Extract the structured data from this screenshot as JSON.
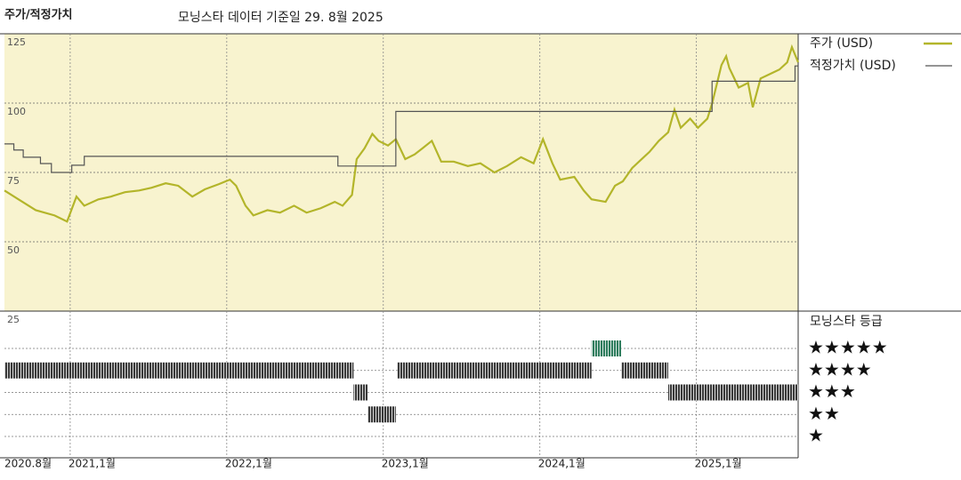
{
  "chart_data": [
    {
      "type": "line",
      "title": "주가/적정가치",
      "subtitle": "모닝스타 데이터 기준일 29. 8월 2025",
      "xlim": [
        2020.58,
        2025.65
      ],
      "ylim": [
        25,
        125
      ],
      "yticks": [
        25,
        50,
        75,
        100,
        125
      ],
      "xticks": [
        {
          "value": 2020.58,
          "label": "2020.8월"
        },
        {
          "value": 2021,
          "label": "2021,1월"
        },
        {
          "value": 2022,
          "label": "2022,1월"
        },
        {
          "value": 2023,
          "label": "2023,1월"
        },
        {
          "value": 2024,
          "label": "2024,1월"
        },
        {
          "value": 2025,
          "label": "2025,1월"
        }
      ],
      "grid": true,
      "background": "#f8f3cf",
      "series": [
        {
          "name": "주가 (USD)",
          "color": "#b3b52a",
          "x": [
            2020.58,
            2020.67,
            2020.78,
            2020.9,
            2020.98,
            2021.04,
            2021.09,
            2021.18,
            2021.26,
            2021.35,
            2021.44,
            2021.52,
            2021.61,
            2021.69,
            2021.78,
            2021.86,
            2021.95,
            2022.02,
            2022.06,
            2022.12,
            2022.17,
            2022.26,
            2022.34,
            2022.43,
            2022.51,
            2022.6,
            2022.69,
            2022.74,
            2022.8,
            2022.83,
            2022.88,
            2022.93,
            2022.97,
            2023.03,
            2023.08,
            2023.14,
            2023.2,
            2023.25,
            2023.31,
            2023.37,
            2023.45,
            2023.54,
            2023.62,
            2023.71,
            2023.79,
            2023.88,
            2023.96,
            2024.02,
            2024.08,
            2024.13,
            2024.22,
            2024.28,
            2024.33,
            2024.42,
            2024.48,
            2024.53,
            2024.59,
            2024.65,
            2024.7,
            2024.76,
            2024.82,
            2024.86,
            2024.9,
            2024.96,
            2025.01,
            2025.07,
            2025.1,
            2025.16,
            2025.19,
            2025.21,
            2025.27,
            2025.33,
            2025.36,
            2025.41,
            2025.47,
            2025.53,
            2025.58,
            2025.61,
            2025.65
          ],
          "values": [
            68.5,
            65.3,
            61.4,
            59.5,
            57.3,
            66.3,
            63,
            65.3,
            66.3,
            67.9,
            68.5,
            69.5,
            71.1,
            70.2,
            66.3,
            68.9,
            70.8,
            72.4,
            70.2,
            63,
            59.5,
            61.4,
            60.5,
            63,
            60.5,
            62.1,
            64.4,
            63,
            66.9,
            79.8,
            83.7,
            88.9,
            86.4,
            84.7,
            87,
            79.8,
            81.5,
            83.7,
            86.4,
            78.9,
            78.9,
            77.3,
            78.3,
            75,
            77.3,
            80.5,
            78.3,
            87,
            78.3,
            72.4,
            73.4,
            68.5,
            65.3,
            64.4,
            70.2,
            71.8,
            76.6,
            79.8,
            82.4,
            86.4,
            89.5,
            97.6,
            91.1,
            94.4,
            91.1,
            94.4,
            99.8,
            113.7,
            116.9,
            112.7,
            105.6,
            107.3,
            98.5,
            108.9,
            110.5,
            112.1,
            114.7,
            120.2,
            114.7
          ]
        },
        {
          "name": "적정가치 (USD)",
          "color": "#555555",
          "step": "after",
          "x": [
            2020.58,
            2020.64,
            2020.7,
            2020.81,
            2020.88,
            2021.01,
            2021.09,
            2022.71,
            2023.08,
            2025.1,
            2025.63
          ],
          "values": [
            85.3,
            83.1,
            80.5,
            78.2,
            75,
            77.6,
            80.8,
            77.3,
            97,
            107.9,
            113.4
          ]
        }
      ]
    },
    {
      "type": "rating",
      "title": "모닝스타 등급",
      "xlim": [
        2020.58,
        2025.65
      ],
      "levels": [
        {
          "value": 5,
          "label": "★★★★★"
        },
        {
          "value": 4,
          "label": "★★★★"
        },
        {
          "value": 3,
          "label": "★★★"
        },
        {
          "value": 2,
          "label": "★★"
        },
        {
          "value": 1,
          "label": "★"
        }
      ],
      "color": "#3a3a3a",
      "top_color": "#2f7d5e",
      "segments": {
        "start": [
          2020.58,
          2022.81,
          2022.9,
          2023.09,
          2024.33,
          2024.52,
          2024.82
        ],
        "end": [
          2022.81,
          2022.9,
          2023.08,
          2024.33,
          2024.52,
          2024.82,
          2025.65
        ],
        "values": [
          4,
          3,
          2,
          4,
          5,
          4,
          3
        ]
      }
    }
  ]
}
